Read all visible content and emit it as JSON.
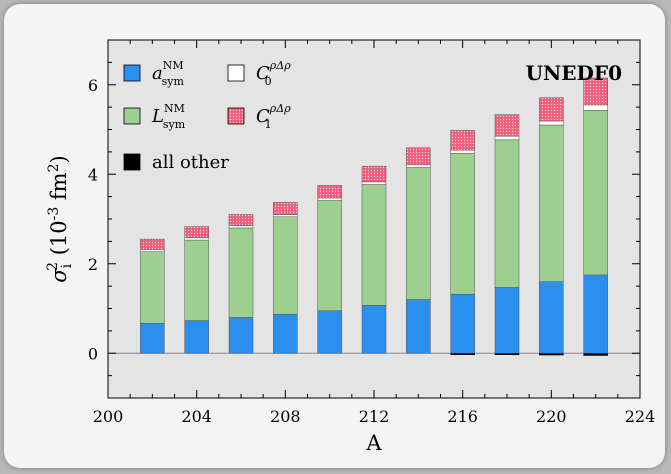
{
  "chart_data": {
    "type": "bar",
    "stacked": true,
    "x": [
      202,
      204,
      206,
      208,
      210,
      212,
      214,
      216,
      218,
      220,
      222
    ],
    "xlim": [
      200,
      224
    ],
    "ylim": [
      -1,
      7
    ],
    "xticks": [
      200,
      204,
      208,
      212,
      216,
      220,
      224
    ],
    "yticks": [
      0,
      2,
      4,
      6
    ],
    "xlabel": "A",
    "ylabel": "σ_i^2 (10^-3 fm^2)",
    "annotation": "UNEDF0",
    "grid": false,
    "legend_position": "top-left",
    "series": [
      {
        "name": "all other",
        "color": "#000000",
        "values": [
          0,
          0,
          0,
          0,
          0,
          0,
          0,
          -0.02,
          -0.03,
          -0.04,
          -0.05
        ]
      },
      {
        "name": "a_sym^NM",
        "color": "#2b8ff0",
        "values": [
          0.67,
          0.73,
          0.8,
          0.87,
          0.95,
          1.07,
          1.2,
          1.32,
          1.47,
          1.6,
          1.75
        ]
      },
      {
        "name": "L_sym^NM",
        "color": "#9ccf90",
        "values": [
          1.6,
          1.8,
          2.0,
          2.18,
          2.47,
          2.7,
          2.95,
          3.15,
          3.3,
          3.5,
          3.68
        ]
      },
      {
        "name": "C_0^{ρΔρ}",
        "color": "#ffffff",
        "values": [
          0.05,
          0.05,
          0.05,
          0.05,
          0.05,
          0.06,
          0.06,
          0.07,
          0.08,
          0.09,
          0.12
        ]
      },
      {
        "name": "C_1^{ρΔρ}",
        "color": "#f25a7a",
        "values": [
          0.23,
          0.25,
          0.25,
          0.27,
          0.28,
          0.35,
          0.38,
          0.44,
          0.48,
          0.52,
          0.6
        ]
      }
    ]
  },
  "legend": {
    "a_sym": {
      "base": "a",
      "sup": "NM",
      "sub": "sym"
    },
    "L_sym": {
      "base": "L",
      "sup": "NM",
      "sub": "sym"
    },
    "C0": {
      "base": "C",
      "sup": "ρΔρ",
      "sub": "0"
    },
    "C1": {
      "base": "C",
      "sup": "ρΔρ",
      "sub": "1"
    },
    "other": {
      "label": "all other"
    }
  },
  "ylabel_parts": {
    "sigma": "σ",
    "sub": "i",
    "sup": "2",
    "pre": " (10",
    "exp": "-3",
    "mid": " fm",
    "exp2": "2",
    "post": ")"
  }
}
